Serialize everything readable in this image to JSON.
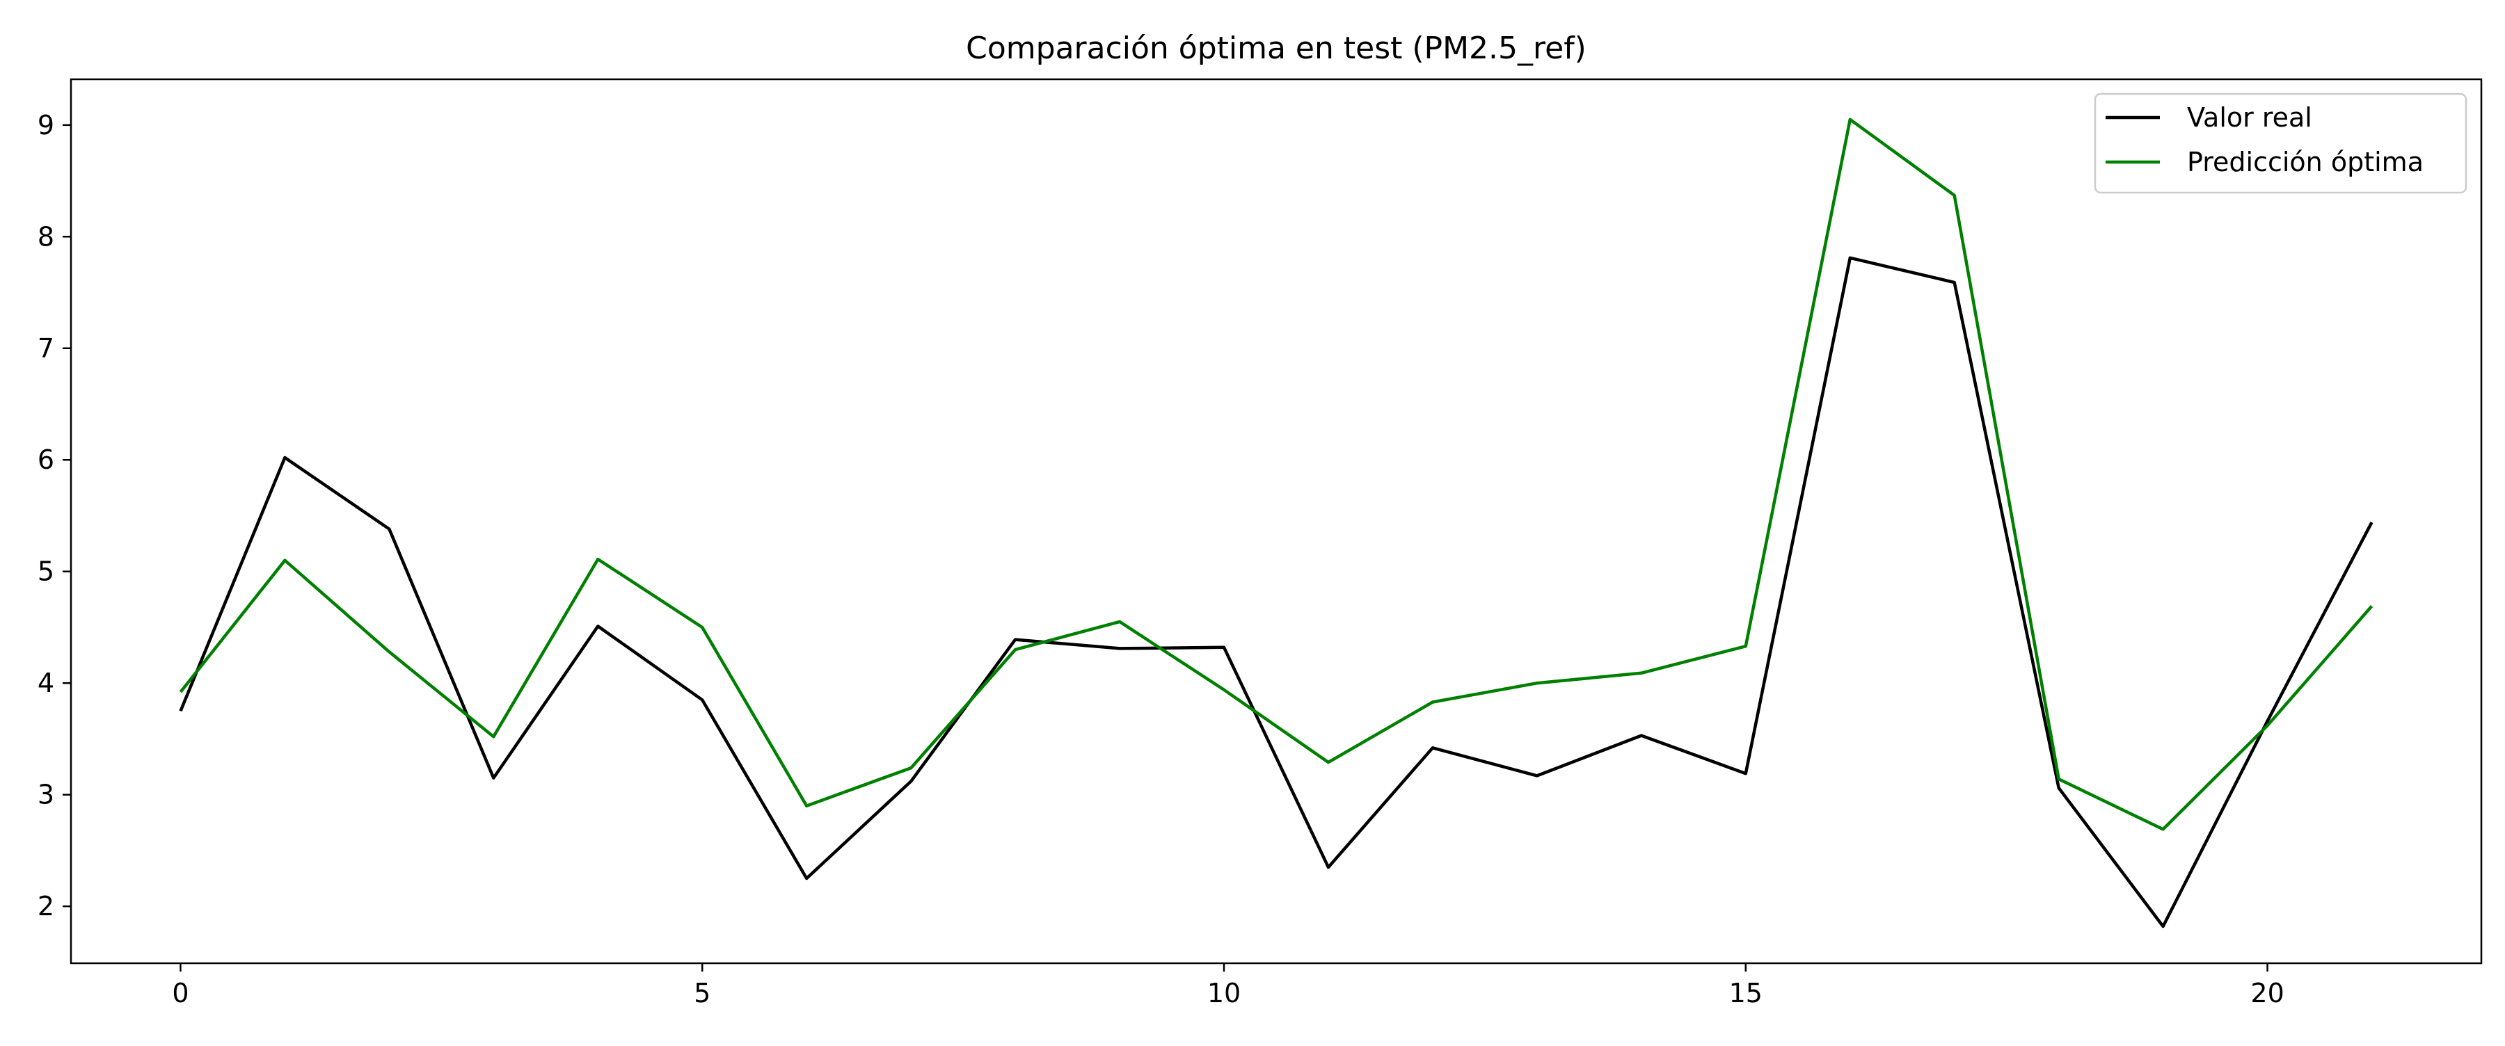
{
  "chart_data": {
    "type": "line",
    "title": "Comparación óptima en test (PM2.5_ref)",
    "xlabel": "",
    "ylabel": "",
    "xlim": [
      -1.05,
      22.05
    ],
    "ylim": [
      1.49,
      9.41
    ],
    "x_ticks": [
      0,
      5,
      10,
      15,
      20
    ],
    "y_ticks": [
      2,
      3,
      4,
      5,
      6,
      7,
      8,
      9
    ],
    "grid": false,
    "legend_position": "top-right",
    "x": [
      0,
      1,
      2,
      3,
      4,
      5,
      6,
      7,
      8,
      9,
      10,
      11,
      12,
      13,
      14,
      15,
      16,
      17,
      18,
      19,
      20,
      21
    ],
    "series": [
      {
        "name": "Valor real",
        "color": "#000000",
        "values": [
          3.75,
          6.02,
          5.38,
          3.15,
          4.51,
          3.85,
          2.25,
          3.12,
          4.39,
          4.31,
          4.32,
          2.35,
          3.42,
          3.17,
          3.53,
          3.19,
          7.81,
          7.59,
          3.06,
          1.82,
          3.66,
          5.44
        ]
      },
      {
        "name": "Predicción óptima",
        "color": "#008000",
        "values": [
          3.92,
          5.1,
          4.28,
          3.52,
          5.11,
          4.5,
          2.9,
          3.24,
          4.3,
          4.55,
          3.94,
          3.29,
          3.83,
          4.0,
          4.09,
          4.33,
          9.05,
          8.37,
          3.14,
          2.69,
          3.62,
          4.69
        ]
      }
    ]
  }
}
